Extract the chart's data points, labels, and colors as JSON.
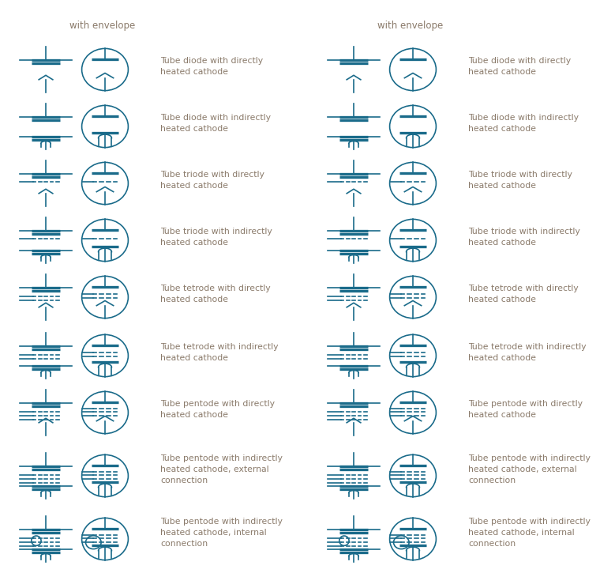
{
  "color": "#1a6b8a",
  "bg_color": "#ffffff",
  "text_color": "#8a7a6a",
  "lw_thin": 1.2,
  "lw_thick": 2.8,
  "fig_width": 7.6,
  "fig_height": 7.25,
  "rows": [
    {
      "type": "diode",
      "direct": true,
      "label": "Tube diode with directly\nheated cathode"
    },
    {
      "type": "diode",
      "direct": false,
      "label": "Tube diode with indirectly\nheated cathode"
    },
    {
      "type": "triode",
      "direct": true,
      "label": "Tube triode with directly\nheated cathode"
    },
    {
      "type": "triode",
      "direct": false,
      "label": "Tube triode with indirectly\nheated cathode"
    },
    {
      "type": "tetrode",
      "direct": true,
      "label": "Tube tetrode with directly\nheated cathode"
    },
    {
      "type": "tetrode",
      "direct": false,
      "label": "Tube tetrode with indirectly\nheated cathode"
    },
    {
      "type": "pentode",
      "direct": true,
      "label": "Tube pentode with directly\nheated cathode"
    },
    {
      "type": "pentode",
      "direct": false,
      "ext": true,
      "label": "Tube pentode with indirectly\nheated cathode, external\nconnection"
    },
    {
      "type": "pentode",
      "direct": false,
      "int": true,
      "label": "Tube pentode with indirectly\nheated cathode, internal\nconnection"
    }
  ]
}
